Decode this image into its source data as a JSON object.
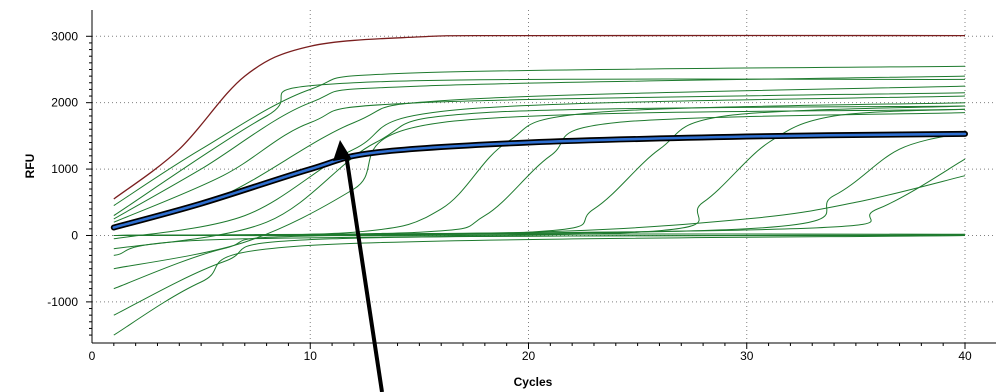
{
  "chart_data": {
    "type": "line",
    "title": "",
    "xlabel": "Cycles",
    "ylabel": "RFU",
    "xlim": [
      0,
      41
    ],
    "ylim": [
      -1600,
      3200
    ],
    "x_ticks": [
      0,
      10,
      20,
      30,
      40
    ],
    "y_ticks": [
      -1000,
      0,
      1000,
      2000,
      3000
    ],
    "grid": true,
    "legend": "none",
    "colors": {
      "background": "#ffffff",
      "grid": "#808080",
      "main_curves": "#1e7a2e",
      "highlight_outline": "#000000",
      "highlight_fill": "#2f6fd0",
      "top_curve": "#7a1e1e",
      "arrow": "#000000"
    },
    "series": [
      {
        "values": [
          {
            "x": 1,
            "y": 550
          },
          {
            "x": 4,
            "y": 1300
          },
          {
            "x": 7,
            "y": 2400
          },
          {
            "x": 10,
            "y": 2850
          },
          {
            "x": 15,
            "y": 2990
          },
          {
            "x": 20,
            "y": 3010
          },
          {
            "x": 40,
            "y": 3010
          }
        ]
      },
      {
        "values": [
          {
            "x": 1,
            "y": 120
          },
          {
            "x": 5,
            "y": 480
          },
          {
            "x": 10,
            "y": 1000
          },
          {
            "x": 13,
            "y": 1250
          },
          {
            "x": 20,
            "y": 1400
          },
          {
            "x": 30,
            "y": 1490
          },
          {
            "x": 40,
            "y": 1530
          }
        ]
      },
      {
        "values": [
          {
            "x": 1,
            "y": 250
          },
          {
            "x": 5,
            "y": 1000
          },
          {
            "x": 10,
            "y": 2000
          },
          {
            "x": 15,
            "y": 2250
          },
          {
            "x": 40,
            "y": 2400
          }
        ]
      },
      {
        "values": [
          {
            "x": 1,
            "y": 450
          },
          {
            "x": 5,
            "y": 1300
          },
          {
            "x": 10,
            "y": 2200
          },
          {
            "x": 15,
            "y": 2450
          },
          {
            "x": 40,
            "y": 2550
          }
        ]
      },
      {
        "values": [
          {
            "x": 1,
            "y": 200
          },
          {
            "x": 6,
            "y": 900
          },
          {
            "x": 10,
            "y": 1700
          },
          {
            "x": 15,
            "y": 2000
          },
          {
            "x": 40,
            "y": 2150
          }
        ]
      },
      {
        "values": [
          {
            "x": 1,
            "y": 100
          },
          {
            "x": 6,
            "y": 600
          },
          {
            "x": 12,
            "y": 1700
          },
          {
            "x": 17,
            "y": 2050
          },
          {
            "x": 40,
            "y": 2250
          }
        ]
      },
      {
        "values": [
          {
            "x": 1,
            "y": -50
          },
          {
            "x": 7,
            "y": 300
          },
          {
            "x": 12,
            "y": 1300
          },
          {
            "x": 17,
            "y": 1900
          },
          {
            "x": 40,
            "y": 2100
          }
        ]
      },
      {
        "values": [
          {
            "x": 1,
            "y": -200
          },
          {
            "x": 8,
            "y": 200
          },
          {
            "x": 13,
            "y": 1400
          },
          {
            "x": 18,
            "y": 1850
          },
          {
            "x": 40,
            "y": 1950
          }
        ]
      },
      {
        "values": [
          {
            "x": 1,
            "y": 300
          },
          {
            "x": 8,
            "y": 1800
          },
          {
            "x": 12,
            "y": 2300
          },
          {
            "x": 40,
            "y": 2350
          }
        ]
      },
      {
        "values": [
          {
            "x": 1,
            "y": -500
          },
          {
            "x": 7,
            "y": -100
          },
          {
            "x": 12,
            "y": 700
          },
          {
            "x": 16,
            "y": 1700
          },
          {
            "x": 40,
            "y": 1900
          }
        ]
      },
      {
        "values": [
          {
            "x": 1,
            "y": -1200
          },
          {
            "x": 6,
            "y": -400
          },
          {
            "x": 11,
            "y": -50
          },
          {
            "x": 40,
            "y": 0
          }
        ]
      },
      {
        "values": [
          {
            "x": 1,
            "y": -1500
          },
          {
            "x": 5,
            "y": -700
          },
          {
            "x": 10,
            "y": -150
          },
          {
            "x": 40,
            "y": 0
          }
        ]
      },
      {
        "values": [
          {
            "x": 1,
            "y": -800
          },
          {
            "x": 6,
            "y": -200
          },
          {
            "x": 11,
            "y": 0
          },
          {
            "x": 40,
            "y": 20
          }
        ]
      },
      {
        "values": [
          {
            "x": 1,
            "y": -300
          },
          {
            "x": 7,
            "y": -50
          },
          {
            "x": 40,
            "y": 10
          }
        ]
      },
      {
        "values": [
          {
            "x": 1,
            "y": 0
          },
          {
            "x": 15,
            "y": 50
          },
          {
            "x": 18,
            "y": 300
          },
          {
            "x": 21,
            "y": 1200
          },
          {
            "x": 24,
            "y": 1700
          },
          {
            "x": 40,
            "y": 1850
          }
        ]
      },
      {
        "values": [
          {
            "x": 1,
            "y": 0
          },
          {
            "x": 20,
            "y": 50
          },
          {
            "x": 23,
            "y": 400
          },
          {
            "x": 26,
            "y": 1300
          },
          {
            "x": 29,
            "y": 1800
          },
          {
            "x": 40,
            "y": 1950
          }
        ]
      },
      {
        "values": [
          {
            "x": 1,
            "y": 0
          },
          {
            "x": 25,
            "y": 50
          },
          {
            "x": 28,
            "y": 500
          },
          {
            "x": 31,
            "y": 1400
          },
          {
            "x": 34,
            "y": 1800
          },
          {
            "x": 40,
            "y": 1900
          }
        ]
      },
      {
        "values": [
          {
            "x": 1,
            "y": 0
          },
          {
            "x": 30,
            "y": 100
          },
          {
            "x": 34,
            "y": 600
          },
          {
            "x": 37,
            "y": 1300
          },
          {
            "x": 40,
            "y": 1550
          }
        ]
      },
      {
        "values": [
          {
            "x": 1,
            "y": 0
          },
          {
            "x": 32,
            "y": 100
          },
          {
            "x": 36,
            "y": 400
          },
          {
            "x": 40,
            "y": 1150
          }
        ]
      },
      {
        "values": [
          {
            "x": 1,
            "y": 0
          },
          {
            "x": 20,
            "y": 50
          },
          {
            "x": 30,
            "y": 250
          },
          {
            "x": 35,
            "y": 500
          },
          {
            "x": 40,
            "y": 900
          }
        ]
      },
      {
        "values": [
          {
            "x": 1,
            "y": 0
          },
          {
            "x": 12,
            "y": 50
          },
          {
            "x": 16,
            "y": 400
          },
          {
            "x": 19,
            "y": 1400
          },
          {
            "x": 23,
            "y": 1850
          },
          {
            "x": 40,
            "y": 2000
          }
        ]
      }
    ]
  }
}
